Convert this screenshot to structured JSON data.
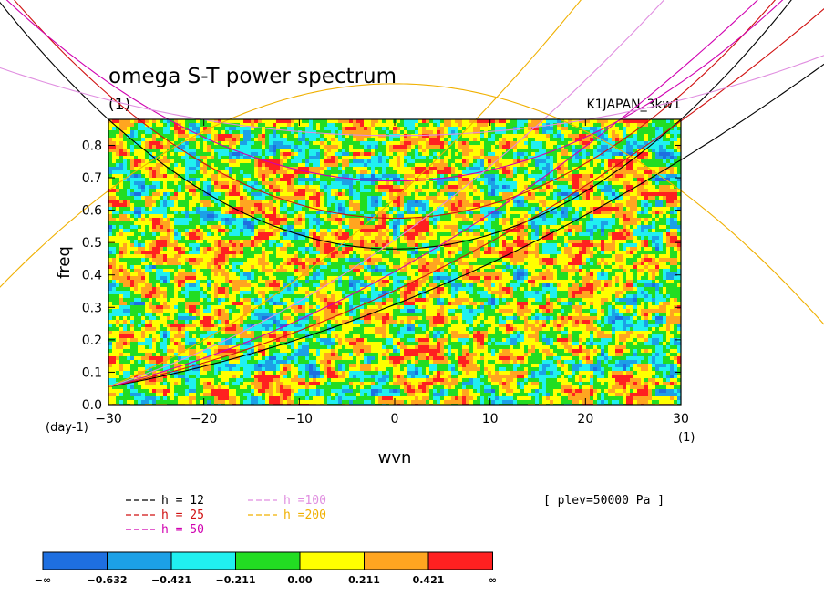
{
  "chart_data": {
    "type": "heatmap",
    "title": "omega S-T power spectrum",
    "subtitle_left": "(1)",
    "subtitle_right": "K1JAPAN_3kw1",
    "xlabel": "wvn",
    "ylabel": "freq",
    "x_unit": "(1)",
    "y_unit": "(day-1)",
    "xlim": [
      -30,
      30
    ],
    "ylim": [
      0.0,
      0.88
    ],
    "xticks": [
      "−30",
      "−20",
      "−10",
      "0",
      "10",
      "20",
      "30"
    ],
    "xtick_values": [
      -30,
      -20,
      -10,
      0,
      10,
      20,
      30
    ],
    "yticks": [
      "0.0",
      "0.1",
      "0.2",
      "0.3",
      "0.4",
      "0.5",
      "0.6",
      "0.7",
      "0.8"
    ],
    "ytick_values": [
      0.0,
      0.1,
      0.2,
      0.3,
      0.4,
      0.5,
      0.6,
      0.7,
      0.8
    ],
    "annotation": "[ plev=50000 Pa ]",
    "contour_levels": [
      "−∞",
      "−0.632",
      "−0.421",
      "−0.211",
      "0.00",
      "0.211",
      "0.421",
      "∞"
    ],
    "palette": [
      "#1e6fe0",
      "#1ca0e6",
      "#20f0f0",
      "#22dd22",
      "#ffff00",
      "#ffa520",
      "#ff2020"
    ],
    "dispersion_curves": [
      {
        "name": "h = 12",
        "color": "#000000",
        "minimum_freq": 0.48
      },
      {
        "name": "h = 25",
        "color": "#d01010",
        "minimum_freq": 0.575
      },
      {
        "name": "h = 50",
        "color": "#d000b0",
        "minimum_freq": 0.69
      },
      {
        "name": "h =100",
        "color": "#e08ee0",
        "minimum_freq": 0.83
      },
      {
        "name": "h =200",
        "color": "#f0b000",
        "minimum_freq": 0.99
      }
    ]
  }
}
